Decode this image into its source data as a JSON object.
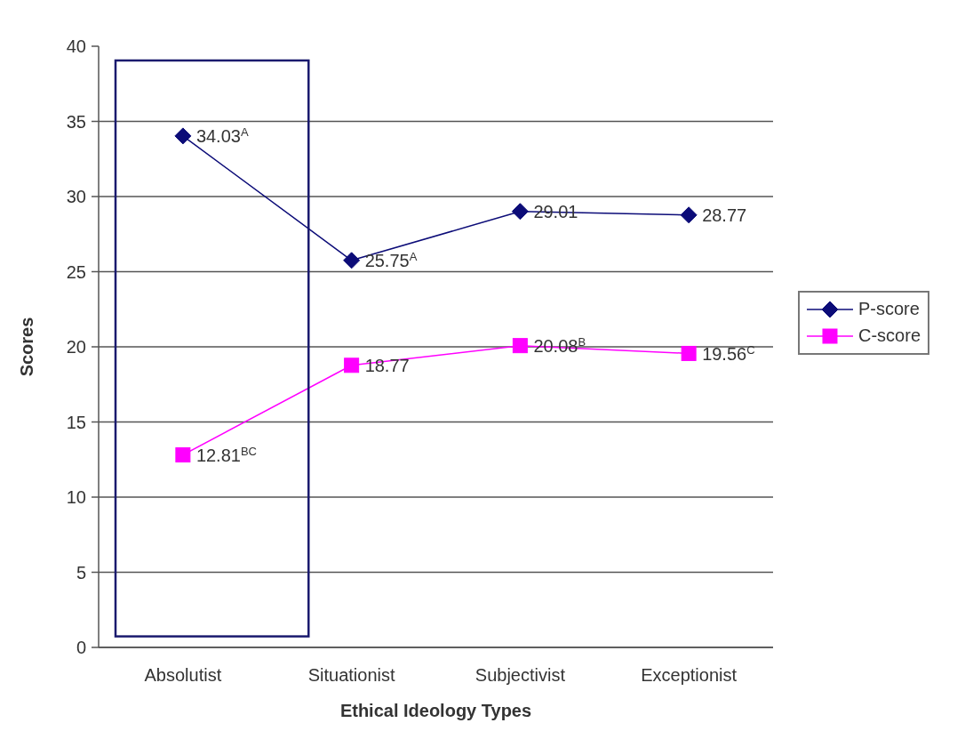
{
  "chart_data": {
    "type": "line",
    "xlabel": "Ethical Ideology Types",
    "ylabel": "Scores",
    "categories": [
      "Absolutist",
      "Situationist",
      "Subjectivist",
      "Exceptionist"
    ],
    "series": [
      {
        "name": "P-score",
        "color": "#0c0c78",
        "marker": "diamond",
        "values": [
          34.03,
          25.75,
          29.01,
          28.77
        ],
        "value_labels": [
          "34.03$^{A}$",
          "25.75$^{A}$",
          "29.01",
          "28.77"
        ]
      },
      {
        "name": "C-score",
        "color": "#ff00ff",
        "marker": "square",
        "values": [
          12.81,
          18.77,
          20.08,
          19.56
        ],
        "value_labels": [
          "12.81$^{BC}$",
          "18.77",
          "20.08$^{B}$",
          "19.56$^{C}$"
        ]
      }
    ],
    "ylim": [
      0,
      40
    ],
    "yticks": [
      0,
      5,
      10,
      15,
      20,
      25,
      30,
      35,
      40
    ],
    "grid": "y",
    "legend": "right"
  }
}
